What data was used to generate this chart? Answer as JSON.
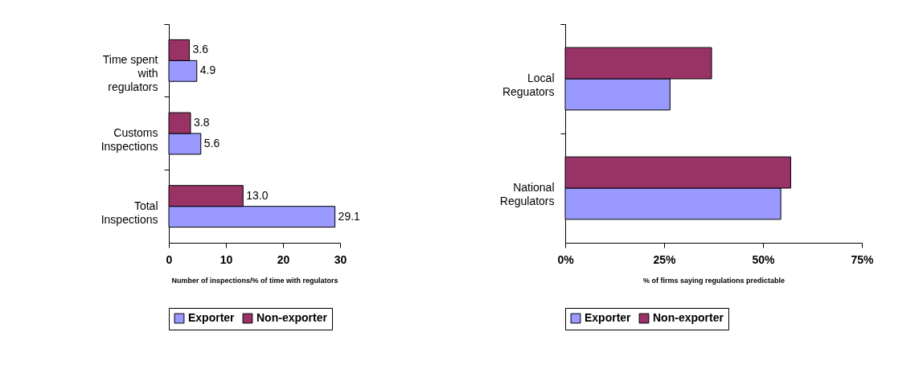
{
  "chart_data": [
    {
      "type": "bar",
      "orientation": "horizontal",
      "categories": [
        "Time spent with regulators",
        "Customs Inspections",
        "Total Inspections"
      ],
      "series": [
        {
          "name": "Exporter",
          "color": "#9999ff",
          "values": [
            4.9,
            5.6,
            29.1
          ],
          "value_labels": [
            "4.9",
            "5.6",
            "29.1"
          ]
        },
        {
          "name": "Non-exporter",
          "color": "#993366",
          "values": [
            3.6,
            3.8,
            13.0
          ],
          "value_labels": [
            "3.6",
            "3.8",
            "13.0"
          ]
        }
      ],
      "xlabel": "Number of inspections/% of time with regulators",
      "xlim": [
        0,
        30
      ],
      "xticks": [
        0,
        10,
        20,
        30
      ],
      "legend": "bottom",
      "grid": false
    },
    {
      "type": "bar",
      "orientation": "horizontal",
      "categories": [
        "Local Reguators",
        "National Regulators"
      ],
      "series": [
        {
          "name": "Exporter",
          "color": "#9999ff",
          "values": [
            26.5,
            54.5
          ]
        },
        {
          "name": "Non-exporter",
          "color": "#993366",
          "values": [
            37,
            57
          ]
        }
      ],
      "xlabel": "% of firms saying regulations predictable",
      "xlim": [
        0,
        75
      ],
      "xticks": [
        {
          "value": 0,
          "label": "0%"
        },
        {
          "value": 25,
          "label": "25%"
        },
        {
          "value": 50,
          "label": "50%"
        },
        {
          "value": 75,
          "label": "75%"
        }
      ],
      "legend": "bottom",
      "grid": false
    }
  ]
}
